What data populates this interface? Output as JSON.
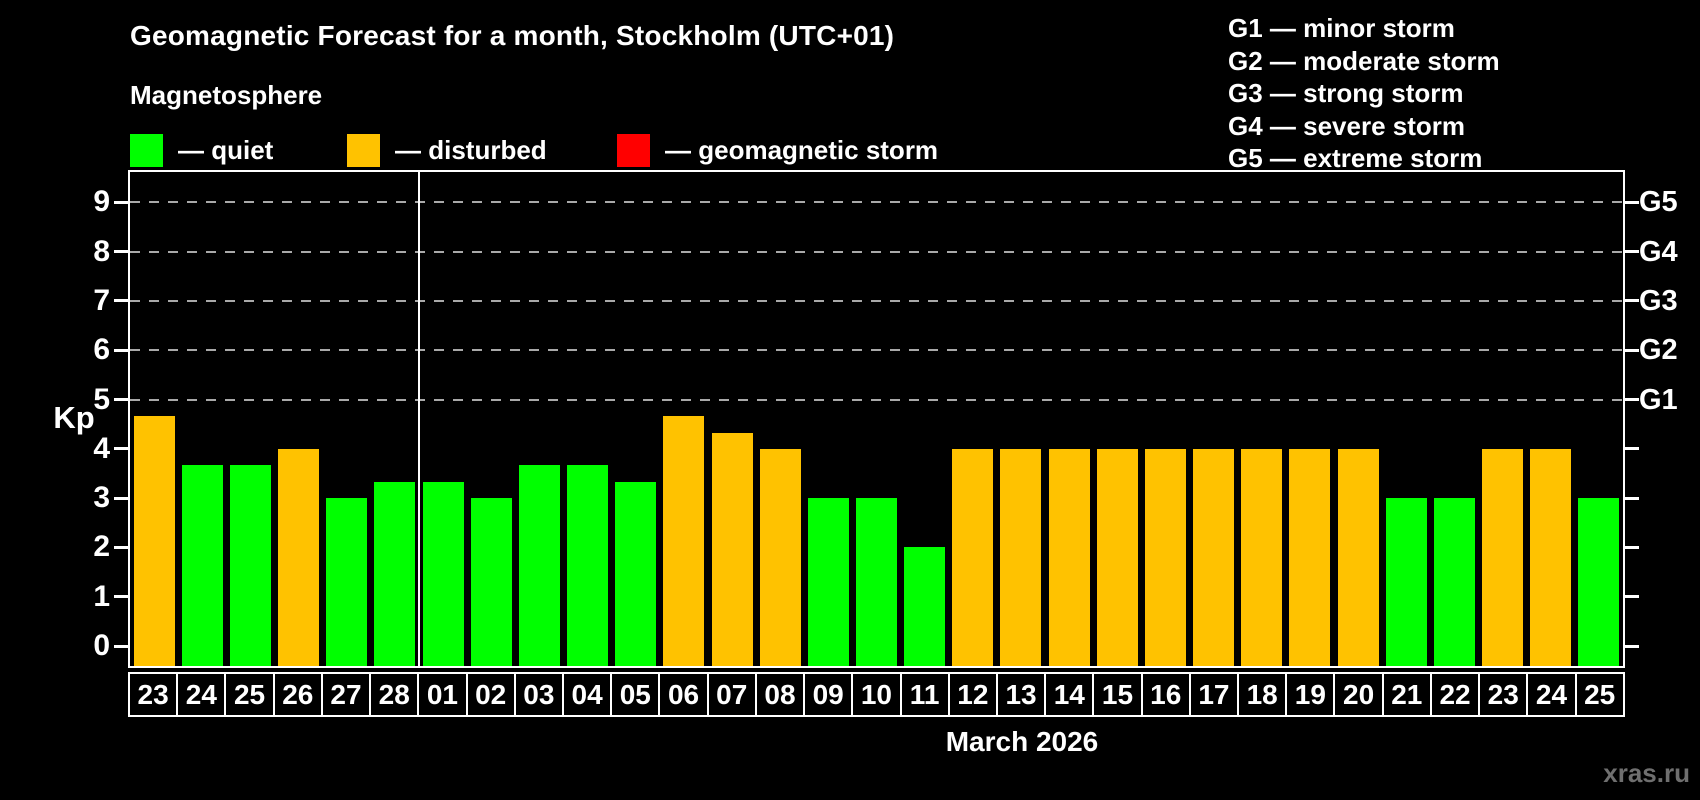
{
  "title": "Geomagnetic Forecast for a month, Stockholm (UTC+01)",
  "subtitle": "Magnetosphere",
  "legend": {
    "items": [
      {
        "key": "quiet",
        "label": "— quiet"
      },
      {
        "key": "disturbed",
        "label": "— disturbed"
      },
      {
        "key": "storm",
        "label": "— geomagnetic storm"
      }
    ]
  },
  "g_scale_legend": [
    "G1 — minor storm",
    "G2 — moderate storm",
    "G3 — strong storm",
    "G4 — severe storm",
    "G5 — extreme storm"
  ],
  "watermark": "xras.ru",
  "chart_data": {
    "type": "bar",
    "title": "Geomagnetic Forecast for a month, Stockholm (UTC+01)",
    "xlabel": "March 2026",
    "ylabel": "Kp",
    "ylim": [
      0,
      9.7
    ],
    "yticks": [
      0,
      1,
      2,
      3,
      4,
      5,
      6,
      7,
      8,
      9
    ],
    "dashed_gridlines_at_kp": [
      5,
      6,
      7,
      8,
      9
    ],
    "right_axis": [
      {
        "kp": 5,
        "label": "G1"
      },
      {
        "kp": 6,
        "label": "G2"
      },
      {
        "kp": 7,
        "label": "G3"
      },
      {
        "kp": 8,
        "label": "G4"
      },
      {
        "kp": 9,
        "label": "G5"
      }
    ],
    "status_colors": {
      "quiet": "#00ff00",
      "disturbed": "#ffc200",
      "storm": "#ff0000"
    },
    "month_separator_after_index": 5,
    "bars": [
      {
        "day": "23",
        "kp": 4.67,
        "status": "disturbed"
      },
      {
        "day": "24",
        "kp": 3.67,
        "status": "quiet"
      },
      {
        "day": "25",
        "kp": 3.67,
        "status": "quiet"
      },
      {
        "day": "26",
        "kp": 4.0,
        "status": "disturbed"
      },
      {
        "day": "27",
        "kp": 3.0,
        "status": "quiet"
      },
      {
        "day": "28",
        "kp": 3.33,
        "status": "quiet"
      },
      {
        "day": "01",
        "kp": 3.33,
        "status": "quiet"
      },
      {
        "day": "02",
        "kp": 3.0,
        "status": "quiet"
      },
      {
        "day": "03",
        "kp": 3.67,
        "status": "quiet"
      },
      {
        "day": "04",
        "kp": 3.67,
        "status": "quiet"
      },
      {
        "day": "05",
        "kp": 3.33,
        "status": "quiet"
      },
      {
        "day": "06",
        "kp": 4.67,
        "status": "disturbed"
      },
      {
        "day": "07",
        "kp": 4.33,
        "status": "disturbed"
      },
      {
        "day": "08",
        "kp": 4.0,
        "status": "disturbed"
      },
      {
        "day": "09",
        "kp": 3.0,
        "status": "quiet"
      },
      {
        "day": "10",
        "kp": 3.0,
        "status": "quiet"
      },
      {
        "day": "11",
        "kp": 2.0,
        "status": "quiet"
      },
      {
        "day": "12",
        "kp": 4.0,
        "status": "disturbed"
      },
      {
        "day": "13",
        "kp": 4.0,
        "status": "disturbed"
      },
      {
        "day": "14",
        "kp": 4.0,
        "status": "disturbed"
      },
      {
        "day": "15",
        "kp": 4.0,
        "status": "disturbed"
      },
      {
        "day": "16",
        "kp": 4.0,
        "status": "disturbed"
      },
      {
        "day": "17",
        "kp": 4.0,
        "status": "disturbed"
      },
      {
        "day": "18",
        "kp": 4.0,
        "status": "disturbed"
      },
      {
        "day": "19",
        "kp": 4.0,
        "status": "disturbed"
      },
      {
        "day": "20",
        "kp": 4.0,
        "status": "disturbed"
      },
      {
        "day": "21",
        "kp": 3.0,
        "status": "quiet"
      },
      {
        "day": "22",
        "kp": 3.0,
        "status": "quiet"
      },
      {
        "day": "23",
        "kp": 4.0,
        "status": "disturbed"
      },
      {
        "day": "24",
        "kp": 4.0,
        "status": "disturbed"
      },
      {
        "day": "25",
        "kp": 3.0,
        "status": "quiet"
      }
    ]
  }
}
